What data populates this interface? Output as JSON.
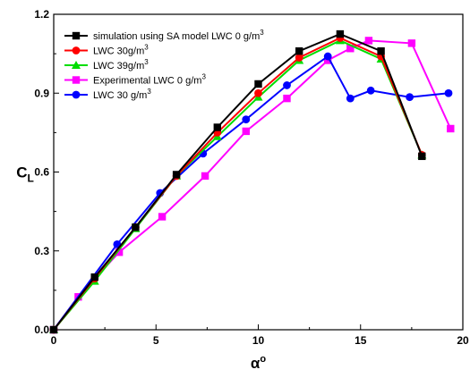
{
  "chart_data": {
    "type": "line",
    "xlabel": "α",
    "xlabel_sup": "o",
    "ylabel": "C",
    "ylabel_sub": "L",
    "xlim": [
      0,
      20
    ],
    "ylim": [
      0,
      1.2
    ],
    "xticks": [
      0,
      5,
      10,
      15,
      20
    ],
    "yticks": [
      0.0,
      0.3,
      0.6,
      0.9,
      1.2
    ],
    "xtick_labels": [
      "0",
      "5",
      "10",
      "15",
      "20"
    ],
    "ytick_labels": [
      "0.0",
      "0.3",
      "0.6",
      "0.9",
      "1.2"
    ],
    "grid": false,
    "legend_position": "top-left",
    "series": [
      {
        "name": "simulation using SA model LWC 0 g/m",
        "name_sup": "3",
        "color": "#000000",
        "marker": "square",
        "x": [
          0,
          2,
          4,
          6,
          8,
          10,
          12,
          14,
          16,
          18
        ],
        "y": [
          0.0,
          0.2,
          0.39,
          0.59,
          0.77,
          0.935,
          1.06,
          1.125,
          1.06,
          0.66
        ]
      },
      {
        "name": "LWC 30g/m",
        "name_sup": "3",
        "color": "#ff0000",
        "marker": "circle",
        "x": [
          0,
          2,
          4,
          6,
          8,
          10,
          12,
          14,
          16,
          18
        ],
        "y": [
          0.0,
          0.195,
          0.39,
          0.585,
          0.75,
          0.9,
          1.035,
          1.11,
          1.04,
          0.665
        ]
      },
      {
        "name": "LWC 39g/m",
        "name_sup": "3",
        "color": "#00dd00",
        "marker": "triangle",
        "x": [
          0,
          2,
          4,
          6,
          8,
          10,
          12,
          14,
          16,
          18
        ],
        "y": [
          0.0,
          0.185,
          0.385,
          0.585,
          0.735,
          0.885,
          1.025,
          1.1,
          1.03,
          0.665
        ]
      },
      {
        "name": "Experimental LWC 0 g/m",
        "name_sup": "3",
        "color": "#ff00ff",
        "marker": "square",
        "x": [
          0,
          1.2,
          3.2,
          5.3,
          7.4,
          9.4,
          11.4,
          13.4,
          14.5,
          15.4,
          17.5,
          19.4
        ],
        "y": [
          0.0,
          0.125,
          0.295,
          0.43,
          0.585,
          0.755,
          0.88,
          1.025,
          1.07,
          1.1,
          1.09,
          0.765
        ]
      },
      {
        "name": "LWC  30 g/m",
        "name_sup": "3",
        "color": "#0000ff",
        "marker": "circle",
        "x": [
          0,
          3.1,
          5.2,
          7.3,
          9.4,
          11.4,
          13.4,
          14.5,
          15.5,
          17.4,
          19.3
        ],
        "y": [
          0.0,
          0.325,
          0.52,
          0.67,
          0.8,
          0.93,
          1.04,
          0.88,
          0.91,
          0.885,
          0.9
        ]
      }
    ]
  }
}
